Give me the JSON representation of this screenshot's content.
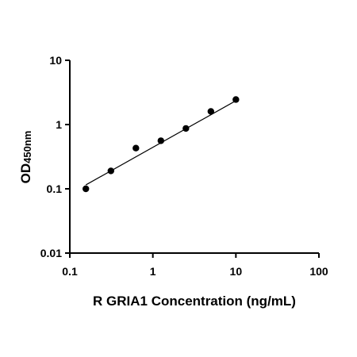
{
  "chart_data": {
    "type": "scatter",
    "title": "",
    "xlabel": "R GRIA1 Concentration (ng/mL)",
    "ylabel": {
      "main": "OD",
      "subscript": "450nm"
    },
    "x_scale": "log",
    "y_scale": "log",
    "xlim": [
      0.1,
      100
    ],
    "ylim": [
      0.01,
      10
    ],
    "x_tick_labels": [
      "0.1",
      "1",
      "10",
      "100"
    ],
    "y_tick_labels": [
      "0.01",
      "0.1",
      "1",
      "10"
    ],
    "grid": false,
    "legend": "none",
    "series": [
      {
        "x": [
          0.156,
          0.3125,
          0.625,
          1.25,
          2.5,
          5,
          10
        ],
        "y": [
          0.1,
          0.19,
          0.43,
          0.56,
          0.87,
          1.6,
          2.45
        ]
      }
    ],
    "fit_line": {
      "type": "linear-log-log",
      "x_range": [
        0.156,
        10
      ],
      "y_range": [
        0.115,
        2.35
      ]
    },
    "marker_color": "#000000",
    "line_color": "#000000"
  }
}
